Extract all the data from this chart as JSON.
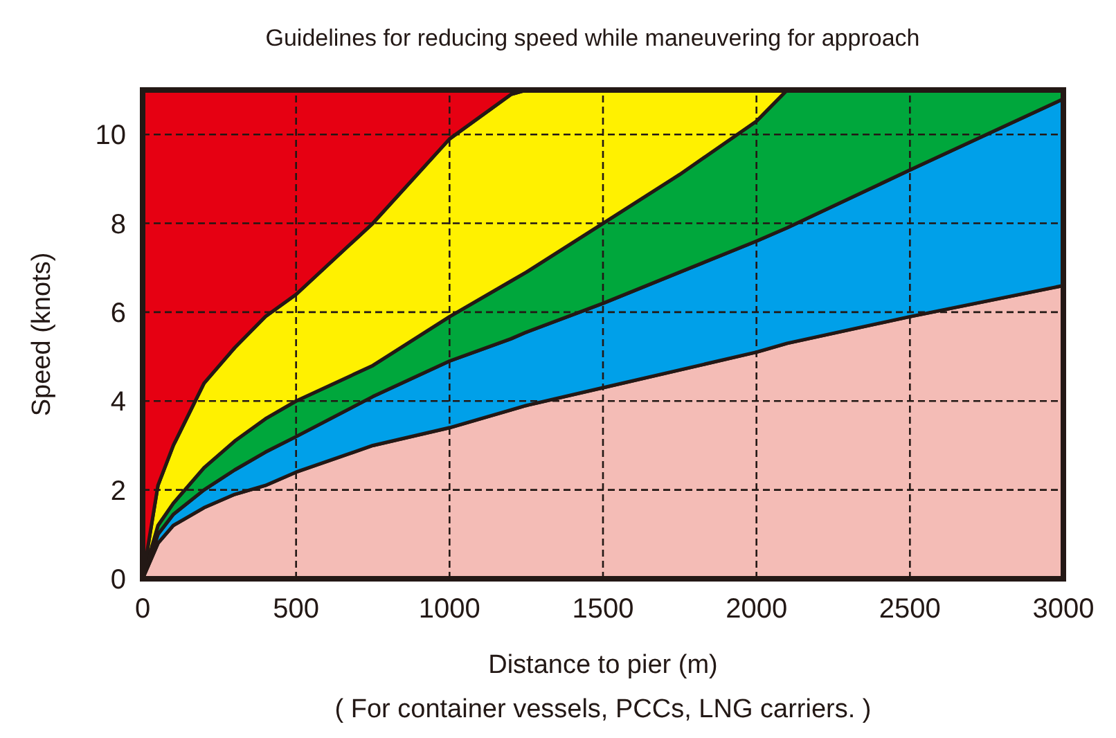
{
  "chart_data": {
    "type": "area",
    "title": "Guidelines for reducing speed while maneuvering for approach",
    "xlabel": "Distance to pier (m)",
    "ylabel": "Speed (knots)",
    "annotations": [
      "( For container vessels, PCCs, LNG carriers. )"
    ],
    "xlim": [
      0,
      3000
    ],
    "xticks": [
      0,
      500,
      1000,
      1500,
      2000,
      2500,
      3000
    ],
    "ylim": [
      0,
      11
    ],
    "yticks": [
      0,
      2,
      4,
      6,
      8,
      10
    ],
    "grid": true,
    "stacked": true,
    "x": [
      0,
      50,
      100,
      200,
      300,
      400,
      500,
      750,
      1000,
      1200,
      1250,
      1500,
      1750,
      2000,
      2100,
      2500,
      3000
    ],
    "series": [
      {
        "color": "#f4bcb6",
        "values": [
          0,
          0.8,
          1.2,
          1.6,
          1.9,
          2.1,
          2.4,
          3.0,
          3.4,
          3.8,
          3.9,
          4.3,
          4.7,
          5.1,
          5.3,
          5.9,
          6.6
        ]
      },
      {
        "color": "#00a0e9",
        "values": [
          0,
          0.2,
          0.25,
          0.4,
          0.55,
          0.75,
          0.8,
          1.1,
          1.5,
          1.6,
          1.65,
          1.9,
          2.2,
          2.5,
          2.6,
          3.3,
          4.2
        ]
      },
      {
        "color": "#00a73c",
        "values": [
          0,
          0.2,
          0.25,
          0.5,
          0.65,
          0.75,
          0.8,
          0.7,
          1.0,
          1.3,
          1.35,
          1.8,
          2.2,
          2.7,
          3.1,
          1.8,
          0.2
        ]
      },
      {
        "color": "#fff100",
        "values": [
          0,
          0.9,
          1.3,
          1.9,
          2.1,
          2.3,
          2.4,
          3.2,
          4.0,
          4.2,
          4.1,
          3.0,
          1.9,
          0.7,
          0,
          null,
          null
        ]
      },
      {
        "color": "#e60012",
        "values": [
          11,
          8.9,
          8,
          6.6,
          5.8,
          5.1,
          4.6,
          3.0,
          1.1,
          0.1,
          0,
          null,
          null,
          null,
          null,
          null,
          null
        ]
      }
    ]
  }
}
